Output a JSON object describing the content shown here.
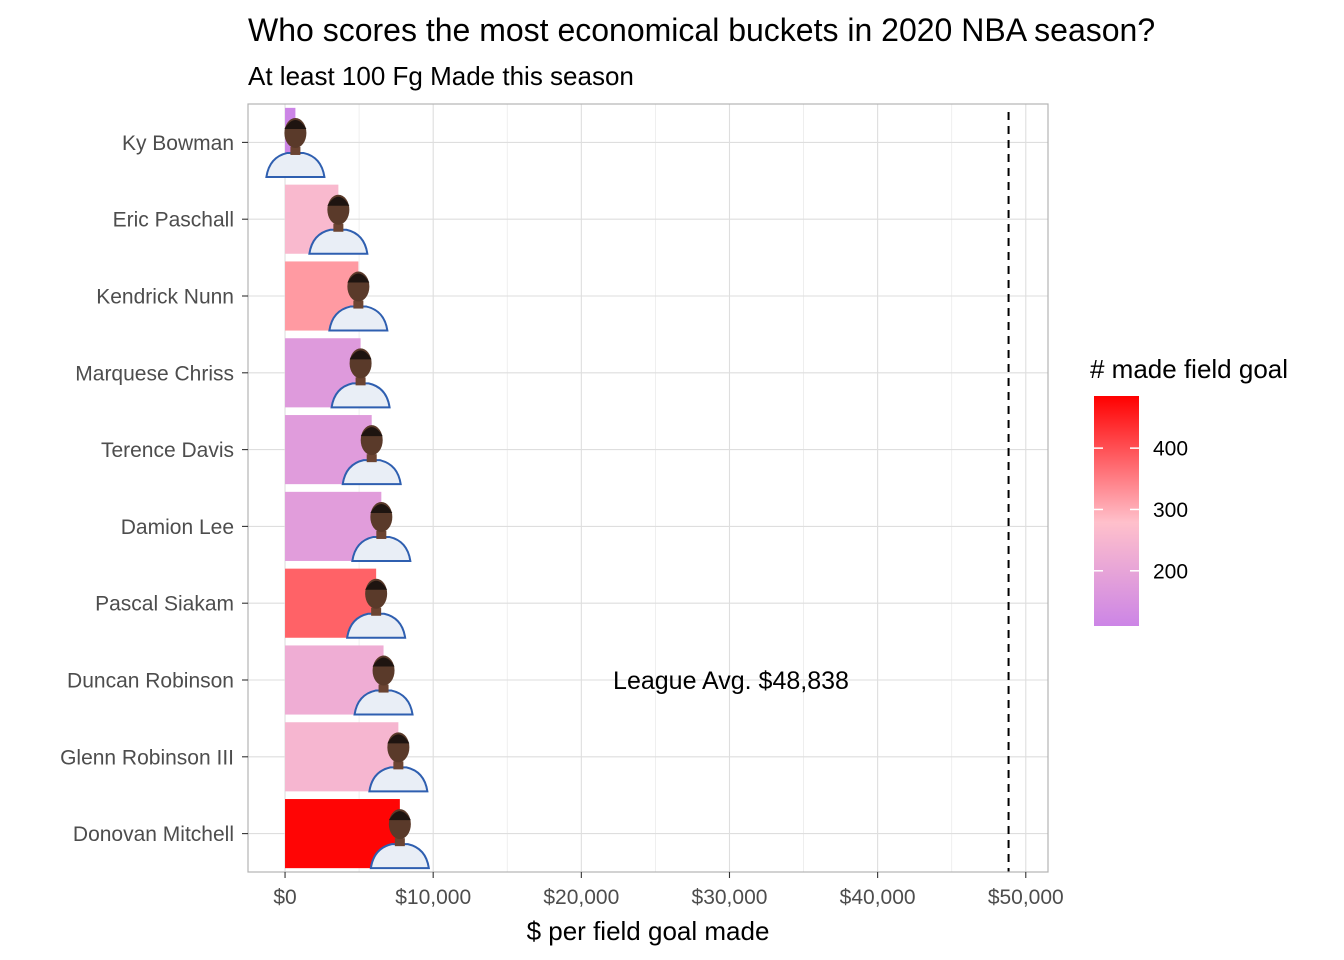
{
  "chart_data": {
    "type": "bar",
    "orientation": "horizontal",
    "title": "Who scores the most economical buckets in 2020 NBA season?",
    "subtitle": "At least 100 Fg Made this season",
    "xlabel": "$ per field goal made",
    "ylabel": "",
    "xlim": [
      -2500,
      51500
    ],
    "x_ticks": [
      0,
      10000,
      20000,
      30000,
      40000,
      50000
    ],
    "x_tick_labels": [
      "$0",
      "$10,000",
      "$20,000",
      "$30,000",
      "$40,000",
      "$50,000"
    ],
    "grid": true,
    "categories": [
      "Ky Bowman",
      "Eric Paschall",
      "Kendrick Nunn",
      "Marquese Chriss",
      "Terence Davis",
      "Damion Lee",
      "Pascal Siakam",
      "Duncan Robinson",
      "Glenn Robinson III",
      "Donovan Mitchell"
    ],
    "values": [
      700,
      3600,
      4950,
      5100,
      5850,
      6500,
      6150,
      6650,
      7650,
      7750
    ],
    "made_field_goals": [
      110,
      260,
      320,
      170,
      175,
      180,
      380,
      225,
      250,
      480
    ],
    "reference_line": {
      "value": 48838,
      "label": "League Avg. $48,838",
      "style": "dashed"
    },
    "legend": {
      "title": "# made field goal",
      "placement": "right",
      "range": [
        110,
        485
      ],
      "ticks": [
        200,
        300,
        400
      ],
      "tick_labels": [
        "200",
        "300",
        "400"
      ],
      "colors": [
        "#cc85e6",
        "#ffc0cb",
        "#ff0000"
      ]
    }
  }
}
